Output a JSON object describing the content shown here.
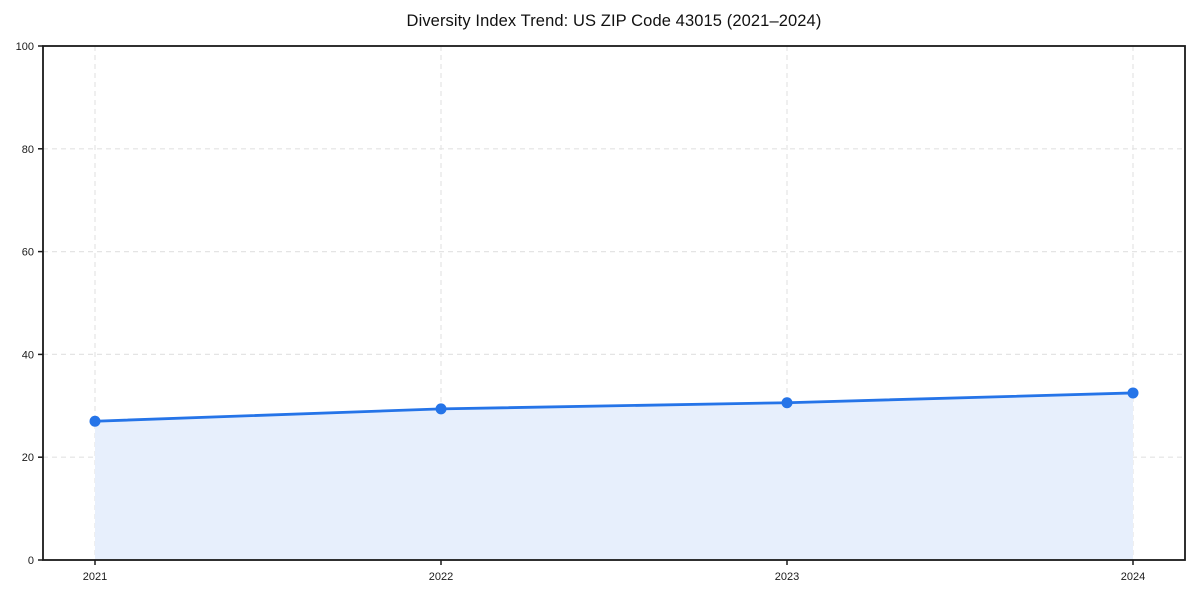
{
  "chart_data": {
    "type": "area",
    "title": "Diversity Index Trend: US ZIP Code 43015 (2021–2024)",
    "categories": [
      "2021",
      "2022",
      "2023",
      "2024"
    ],
    "series": [
      {
        "name": "Diversity Index",
        "values": [
          27,
          29.4,
          30.6,
          32.5
        ]
      }
    ],
    "xlabel": "",
    "ylabel": "",
    "ylim": [
      0,
      100
    ],
    "yticks": [
      0,
      20,
      40,
      60,
      80,
      100
    ],
    "grid": "dashed, both axes",
    "legend": "none",
    "marker": "circle",
    "colors": {
      "line": "#2574e8",
      "marker": "#2574e8",
      "fill": "#e7effc",
      "grid": "#e4e4e4",
      "axis": "#1a1a1a",
      "tick_text": "#1a1a1a",
      "background": "#ffffff"
    }
  }
}
